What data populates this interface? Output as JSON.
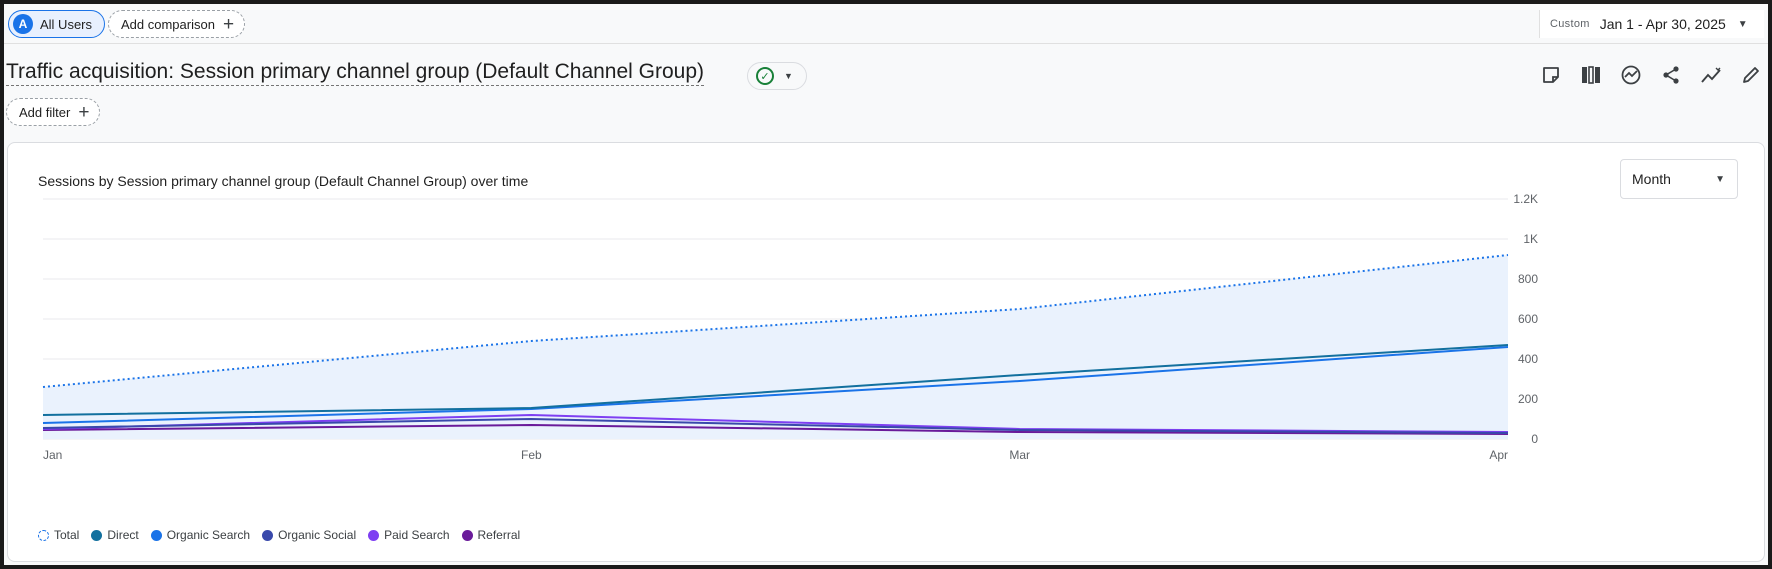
{
  "topbar": {
    "segment_avatar": "A",
    "segment_label": "All Users",
    "add_comparison": "Add comparison",
    "date_prefix": "Custom",
    "date_range": "Jan 1 - Apr 30, 2025"
  },
  "report": {
    "title": "Traffic acquisition: Session primary channel group (Default Channel Group)",
    "add_filter": "Add filter"
  },
  "toolbar_icons": [
    "notes-icon",
    "compare-columns-icon",
    "insights-icon",
    "share-icon",
    "trend-icon",
    "edit-icon"
  ],
  "card": {
    "title": "Sessions by Session primary channel group (Default Channel Group) over time",
    "period": "Month"
  },
  "colors": {
    "total": "#1a73e8",
    "direct": "#12709e",
    "organic_search": "#1a73e8",
    "organic_social": "#3949ab",
    "paid_search": "#7e3ff2",
    "referral": "#6a1b9a",
    "area_fill": "#eaf2fd"
  },
  "chart_data": {
    "type": "line",
    "x": [
      "Jan",
      "Feb",
      "Mar",
      "Apr"
    ],
    "ylim": [
      0,
      1200
    ],
    "yticks": [
      0,
      200,
      400,
      600,
      800,
      1000,
      1200
    ],
    "ytick_labels": [
      "0",
      "200",
      "400",
      "600",
      "800",
      "1K",
      "1.2K"
    ],
    "grid": true,
    "legend_position": "bottom-left",
    "series": [
      {
        "name": "Total",
        "values": [
          260,
          490,
          650,
          920
        ],
        "style": "dotted",
        "fill": true
      },
      {
        "name": "Direct",
        "values": [
          120,
          155,
          320,
          470
        ]
      },
      {
        "name": "Organic Search",
        "values": [
          80,
          150,
          290,
          460
        ]
      },
      {
        "name": "Organic Social",
        "values": [
          55,
          100,
          45,
          30
        ]
      },
      {
        "name": "Paid Search",
        "values": [
          50,
          120,
          50,
          35
        ]
      },
      {
        "name": "Referral",
        "values": [
          45,
          70,
          35,
          25
        ]
      }
    ]
  }
}
